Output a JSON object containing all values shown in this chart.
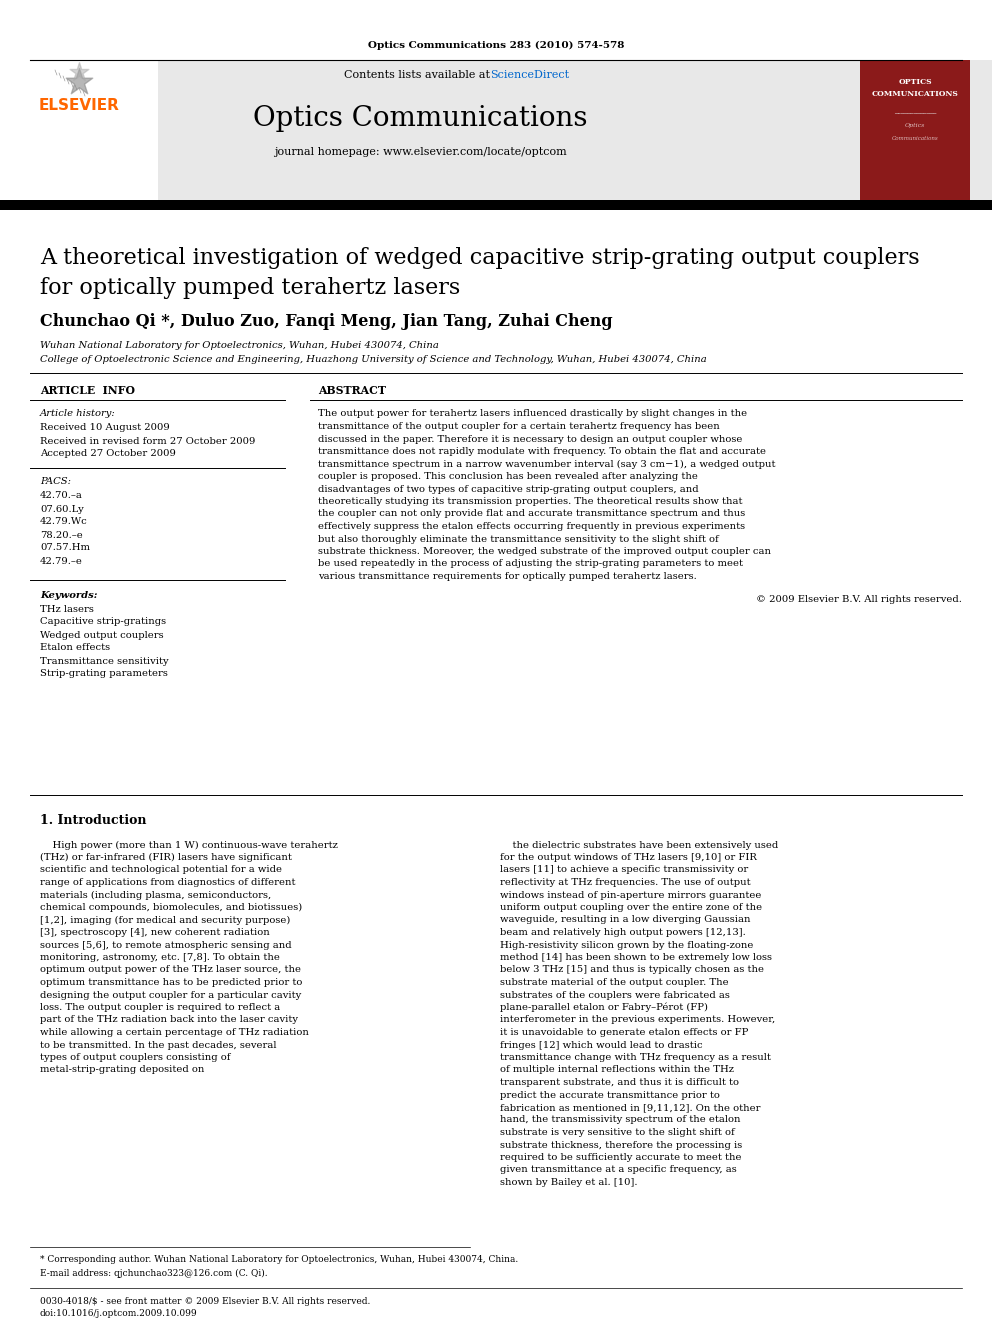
{
  "journal_ref": "Optics Communications 283 (2010) 574-578",
  "header_bg": "#e8e8e8",
  "contents_text": "Contents lists available at",
  "sciencedirect_text": "ScienceDirect",
  "sciencedirect_color": "#0066cc",
  "journal_title": "Optics Communications",
  "homepage_text": "journal homepage: www.elsevier.com/locate/optcom",
  "paper_title_line1": "A theoretical investigation of wedged capacitive strip-grating output couplers",
  "paper_title_line2": "for optically pumped terahertz lasers",
  "authors": "Chunchao Qi *, Duluo Zuo, Fanqi Meng, Jian Tang, Zuhai Cheng",
  "affil1": "Wuhan National Laboratory for Optoelectronics, Wuhan, Hubei 430074, China",
  "affil2": "College of Optoelectronic Science and Engineering, Huazhong University of Science and Technology, Wuhan, Hubei 430074, China",
  "article_info_label": "ARTICLE  INFO",
  "abstract_label": "ABSTRACT",
  "article_history_label": "Article history:",
  "received1": "Received 10 August 2009",
  "received2": "Received in revised form 27 October 2009",
  "accepted": "Accepted 27 October 2009",
  "pacs_label": "PACS:",
  "pacs_items": [
    "42.70.–a",
    "07.60.Ly",
    "42.79.Wc",
    "78.20.–e",
    "07.57.Hm",
    "42.79.–e"
  ],
  "keywords_label": "Keywords:",
  "keywords": [
    "THz lasers",
    "Capacitive strip-gratings",
    "Wedged output couplers",
    "Etalon effects",
    "Transmittance sensitivity",
    "Strip-grating parameters"
  ],
  "abstract_text": "The output power for terahertz lasers influenced drastically by slight changes in the transmittance of the output coupler for a certain terahertz frequency has been discussed in the paper. Therefore it is necessary to design an output coupler whose transmittance does not rapidly modulate with frequency. To obtain the flat and accurate transmittance spectrum in a narrow wavenumber interval (say 3 cm−1), a wedged output coupler is proposed. This conclusion has been revealed after analyzing the disadvantages of two types of capacitive strip-grating output couplers, and theoretically studying its transmission properties. The theoretical results show that the coupler can not only provide flat and accurate transmittance spectrum and thus effectively suppress the etalon effects occurring frequently in previous experiments but also thoroughly eliminate the transmittance sensitivity to the slight shift of substrate thickness. Moreover, the wedged substrate of the improved output coupler can be used repeatedly in the process of adjusting the strip-grating parameters to meet various transmittance requirements for optically pumped terahertz lasers.",
  "copyright": "© 2009 Elsevier B.V. All rights reserved.",
  "section1_title": "1. Introduction",
  "intro_col1": "High power (more than 1 W) continuous-wave terahertz (THz) or far-infrared (FIR) lasers have significant scientific and technological potential for a wide range of applications from diagnostics of different materials (including plasma, semiconductors, chemical compounds, biomolecules, and biotissues) [1,2], imaging (for medical and security purpose) [3], spectroscopy [4], new coherent radiation sources [5,6], to remote atmospheric sensing and monitoring, astronomy, etc. [7,8]. To obtain the optimum output power of the THz laser source, the optimum transmittance has to be predicted prior to designing the output coupler for a particular cavity loss. The output coupler is required to reflect a part of the THz radiation back into the laser cavity while allowing a certain percentage of THz radiation to be transmitted. In the past decades, several types of output couplers consisting of metal-strip-grating deposited on",
  "intro_col2": "the dielectric substrates have been extensively used for the output windows of THz lasers [9,10] or FIR lasers [11] to achieve a specific transmissivity or reflectivity at THz frequencies. The use of output windows instead of pin-aperture mirrors guarantee uniform output coupling over the entire zone of the waveguide, resulting in a low diverging Gaussian beam and relatively high output powers [12,13]. High-resistivity silicon grown by the floating-zone method [14] has been shown to be extremely low loss below 3 THz [15] and thus is typically chosen as the substrate material of the output coupler. The substrates of the couplers were fabricated as plane-parallel etalon or Fabry–Pérot (FP) interferometer in the previous experiments. However, it is unavoidable to generate etalon effects or FP fringes [12] which would lead to drastic transmittance change with THz frequency as a result of multiple internal reflections within the THz transparent substrate, and thus it is difficult to predict the accurate transmittance prior to fabrication as mentioned in [9,11,12]. On the other hand, the transmissivity spectrum of the etalon substrate is very sensitive to the slight shift of substrate thickness, therefore the processing is required to be sufficiently accurate to meet the given transmittance at a specific frequency, as shown by Bailey et al. [10].",
  "footnote": "* Corresponding author. Wuhan National Laboratory for Optoelectronics, Wuhan, Hubei 430074, China.",
  "email": "E-mail address: qjchunchao323@126.com (C. Qi).",
  "issn_line": "0030-4018/$ - see front matter © 2009 Elsevier B.V. All rights reserved.",
  "doi_line": "doi:10.1016/j.optcom.2009.10.099",
  "bg_color": "#ffffff",
  "text_color": "#000000",
  "elsevier_orange": "#ff6600",
  "journal_cover_bg": "#8b1a1a"
}
